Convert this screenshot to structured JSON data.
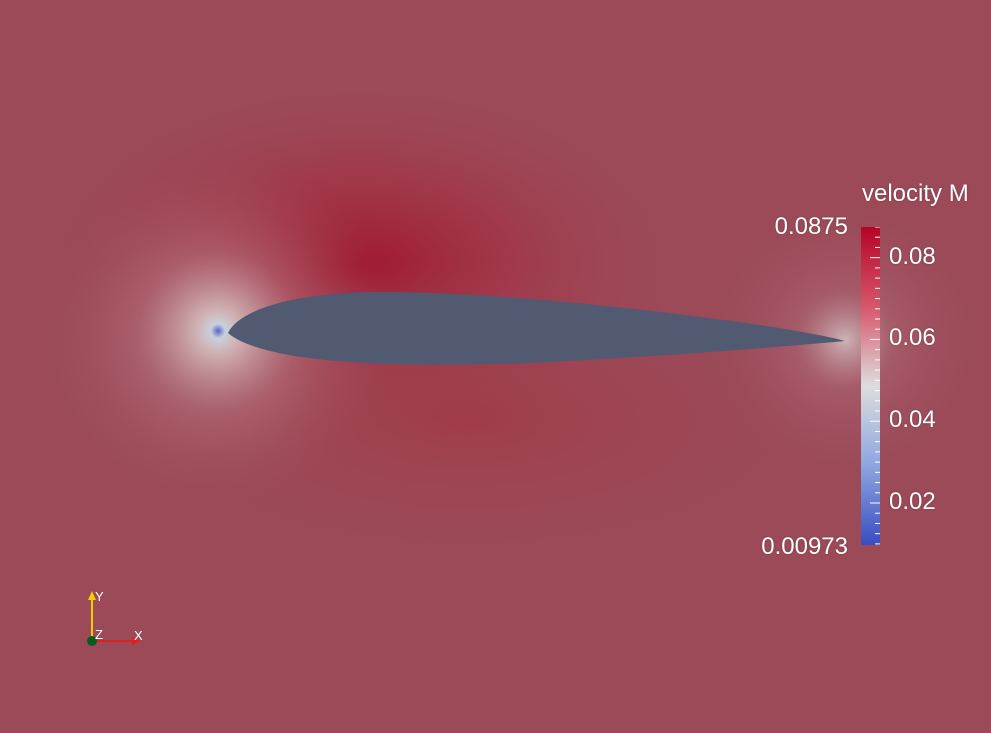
{
  "colorbar": {
    "title": "velocity M",
    "max_label": "0.0875",
    "min_label": "0.00973",
    "range": [
      0.00973,
      0.0875
    ],
    "tick_labels": [
      "0.08",
      "0.06",
      "0.04",
      "0.02"
    ],
    "tick_values": [
      0.08,
      0.06,
      0.04,
      0.02
    ],
    "colormap": [
      "#3b4cc0",
      "#dddddd",
      "#b40426"
    ]
  },
  "axes": {
    "x_label": "X",
    "y_label": "Y",
    "z_label": "Z",
    "x_color": "#e02020",
    "y_color": "#f0d000",
    "z_color": "#0a5a1a"
  },
  "scene": {
    "background_color": "#9c4a58",
    "airfoil_color": "#525a72"
  }
}
